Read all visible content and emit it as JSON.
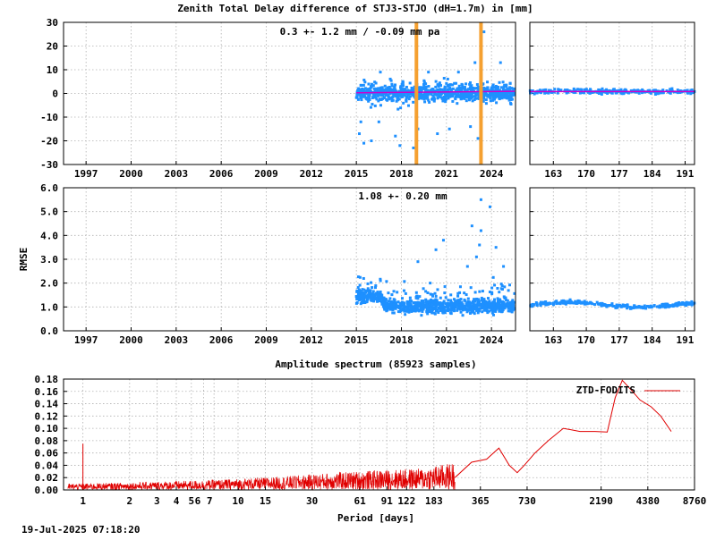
{
  "title": "Zenith Total Delay difference of STJ3-STJO (dH=1.7m) in [mm]",
  "timestamp": "19-Jul-2025 07:18:20",
  "colors": {
    "data": "#1e90ff",
    "mean": "#cc00cc",
    "event": "#f5a030",
    "spectrum": "#e00000",
    "grid": "#b0b0b0"
  },
  "chart_data": [
    {
      "id": "ztd-diff",
      "type": "scatter",
      "ylim": [
        -30,
        30
      ],
      "yticks": [
        -30,
        -20,
        -10,
        0,
        10,
        20,
        30
      ],
      "xlim": [
        1995.5,
        2025.6
      ],
      "xticks": [
        1997,
        2000,
        2003,
        2006,
        2009,
        2012,
        2015,
        2018,
        2021,
        2024
      ],
      "annotation": "0.3 +-   1.2 mm / -0.09 mm pa",
      "data_start": 2015.0,
      "data_end": 2025.55,
      "mean_level": 0.3,
      "scatter_sd": 1.2,
      "events": [
        2019.0,
        2023.3
      ],
      "outliers": [
        [
          2015.3,
          -12
        ],
        [
          2015.2,
          -17
        ],
        [
          2015.5,
          -21
        ],
        [
          2016.0,
          -20
        ],
        [
          2016.5,
          -12
        ],
        [
          2017.6,
          -18
        ],
        [
          2017.9,
          -22
        ],
        [
          2018.8,
          -23
        ],
        [
          2019.1,
          -15
        ],
        [
          2020.4,
          -17
        ],
        [
          2021.2,
          -15
        ],
        [
          2022.6,
          -14
        ],
        [
          2023.1,
          -19
        ],
        [
          2023.3,
          -25
        ],
        [
          2023.5,
          26
        ],
        [
          2022.9,
          13
        ],
        [
          2024.6,
          13
        ],
        [
          2021.8,
          9
        ],
        [
          2019.8,
          9
        ],
        [
          2016.6,
          9
        ]
      ]
    },
    {
      "id": "ztd-diff-zoom",
      "type": "scatter",
      "ylim": [
        -30,
        30
      ],
      "xlim": [
        158,
        193
      ],
      "xticks": [
        163,
        170,
        177,
        184,
        191
      ],
      "mean_level": 0.8,
      "scatter_sd": 1.0
    },
    {
      "id": "rmse",
      "type": "scatter",
      "ylabel": "RMSE",
      "ylim": [
        0.0,
        6.0
      ],
      "yticks": [
        0.0,
        1.0,
        2.0,
        3.0,
        4.0,
        5.0,
        6.0
      ],
      "xlim": [
        1995.5,
        2025.6
      ],
      "xticks": [
        1997,
        2000,
        2003,
        2006,
        2009,
        2012,
        2015,
        2018,
        2021,
        2024
      ],
      "annotation": "1.08 +-  0.20 mm",
      "data_start": 2015.0,
      "data_end": 2025.55,
      "outliers": [
        [
          2023.3,
          5.5
        ],
        [
          2023.9,
          5.2
        ],
        [
          2022.7,
          4.4
        ],
        [
          2020.8,
          3.8
        ],
        [
          2023.2,
          3.6
        ],
        [
          2024.3,
          3.5
        ],
        [
          2023.3,
          4.2
        ],
        [
          2019.1,
          2.9
        ],
        [
          2022.4,
          2.7
        ],
        [
          2024.8,
          2.7
        ],
        [
          2020.3,
          3.4
        ],
        [
          2023.0,
          3.1
        ]
      ]
    },
    {
      "id": "rmse-zoom",
      "type": "scatter",
      "ylim": [
        0.0,
        6.0
      ],
      "xlim": [
        158,
        193
      ],
      "xticks": [
        163,
        170,
        177,
        184,
        191
      ],
      "mean_level": 1.1
    },
    {
      "id": "amplitude-spectrum",
      "type": "line",
      "title": "Amplitude spectrum (85923 samples)",
      "xlabel": "Period [days]",
      "xscale": "log",
      "xlim": [
        0.75,
        8760
      ],
      "xticks": [
        1,
        2,
        3,
        4,
        5,
        6,
        7,
        10,
        15,
        30,
        61,
        91,
        122,
        183,
        365,
        730,
        2190,
        4380,
        8760
      ],
      "xtick_labels": [
        "1",
        "2",
        "3",
        "4",
        "5",
        "6 7",
        "",
        "10",
        "15",
        "30",
        "61",
        "91",
        "122",
        "183",
        "365",
        "730",
        "2190",
        "4380",
        "8760"
      ],
      "ylim": [
        0.0,
        0.18
      ],
      "yticks": [
        0.0,
        0.02,
        0.04,
        0.06,
        0.08,
        0.1,
        0.12,
        0.14,
        0.16,
        0.18
      ],
      "ytick_labels": [
        "0.00",
        "0.02",
        "0.04",
        "0.06",
        "0.08",
        "0.10",
        "0.12",
        "0.14",
        "0.16",
        "0.18"
      ],
      "legend": "ZTD-FODITS",
      "legend_position": "top-right",
      "spike": {
        "period": 1.0,
        "amplitude": 0.075
      },
      "envelope": [
        [
          0.8,
          0.01
        ],
        [
          2,
          0.012
        ],
        [
          5,
          0.015
        ],
        [
          10,
          0.018
        ],
        [
          20,
          0.022
        ],
        [
          40,
          0.028
        ],
        [
          80,
          0.032
        ],
        [
          150,
          0.035
        ],
        [
          250,
          0.045
        ]
      ],
      "smooth": [
        [
          250,
          0.02
        ],
        [
          320,
          0.045
        ],
        [
          400,
          0.05
        ],
        [
          480,
          0.068
        ],
        [
          560,
          0.04
        ],
        [
          630,
          0.028
        ],
        [
          700,
          0.04
        ],
        [
          820,
          0.06
        ],
        [
          1000,
          0.08
        ],
        [
          1250,
          0.1
        ],
        [
          1600,
          0.095
        ],
        [
          2000,
          0.095
        ],
        [
          2400,
          0.094
        ],
        [
          2700,
          0.15
        ],
        [
          3000,
          0.178
        ],
        [
          3400,
          0.163
        ],
        [
          3900,
          0.146
        ],
        [
          4600,
          0.135
        ],
        [
          5300,
          0.12
        ],
        [
          6200,
          0.095
        ]
      ]
    }
  ]
}
